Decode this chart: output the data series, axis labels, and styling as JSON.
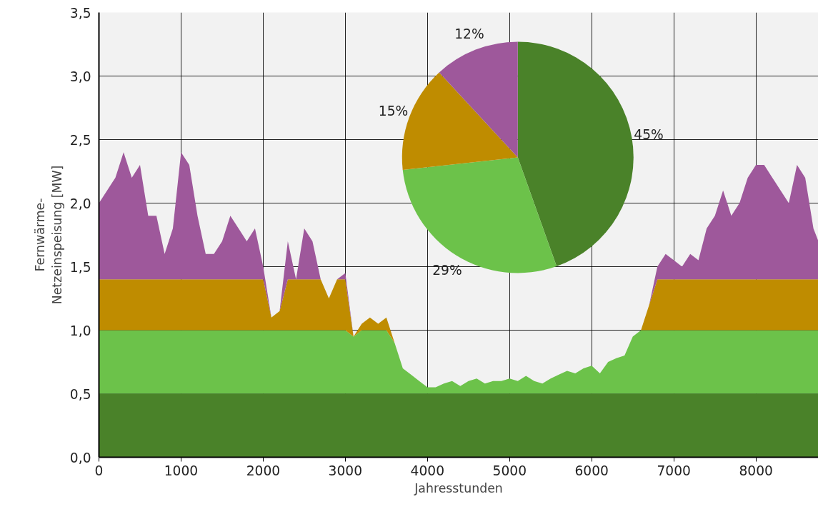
{
  "chart_data": [
    {
      "type": "area",
      "stacked": true,
      "xlabel": "Jahresstunden",
      "ylabel": "Fernwärme-\nNetzeinspeisung [MW]",
      "x": [
        0,
        100,
        200,
        300,
        400,
        500,
        600,
        700,
        800,
        900,
        1000,
        1100,
        1200,
        1300,
        1400,
        1500,
        1600,
        1700,
        1800,
        1900,
        2000,
        2100,
        2200,
        2300,
        2400,
        2500,
        2600,
        2700,
        2800,
        2900,
        3000,
        3100,
        3200,
        3300,
        3400,
        3500,
        3600,
        3700,
        3800,
        3900,
        4000,
        4100,
        4200,
        4300,
        4400,
        4500,
        4600,
        4700,
        4800,
        4900,
        5000,
        5100,
        5200,
        5300,
        5400,
        5500,
        5600,
        5700,
        5800,
        5900,
        6000,
        6100,
        6200,
        6300,
        6400,
        6500,
        6600,
        6700,
        6800,
        6900,
        7000,
        7100,
        7200,
        7300,
        7400,
        7500,
        7600,
        7700,
        7800,
        7900,
        8000,
        8100,
        8200,
        8300,
        8400,
        8500,
        8600,
        8700,
        8760
      ],
      "series": [
        {
          "color": "#4a8229",
          "values": [
            0.5,
            0.5,
            0.5,
            0.5,
            0.5,
            0.5,
            0.5,
            0.5,
            0.5,
            0.5,
            0.5,
            0.5,
            0.5,
            0.5,
            0.5,
            0.5,
            0.5,
            0.5,
            0.5,
            0.5,
            0.5,
            0.5,
            0.5,
            0.5,
            0.5,
            0.5,
            0.5,
            0.5,
            0.5,
            0.5,
            0.5,
            0.5,
            0.5,
            0.5,
            0.5,
            0.5,
            0.5,
            0.5,
            0.5,
            0.5,
            0.5,
            0.5,
            0.5,
            0.5,
            0.5,
            0.5,
            0.5,
            0.5,
            0.5,
            0.5,
            0.5,
            0.5,
            0.5,
            0.5,
            0.5,
            0.5,
            0.5,
            0.5,
            0.5,
            0.5,
            0.5,
            0.5,
            0.5,
            0.5,
            0.5,
            0.5,
            0.5,
            0.5,
            0.5,
            0.5,
            0.5,
            0.5,
            0.5,
            0.5,
            0.5,
            0.5,
            0.5,
            0.5,
            0.5,
            0.5,
            0.5,
            0.5,
            0.5,
            0.5,
            0.5,
            0.5,
            0.5,
            0.5,
            0.5
          ]
        },
        {
          "color": "#6cc24a",
          "values": [
            0.5,
            0.5,
            0.5,
            0.5,
            0.5,
            0.5,
            0.5,
            0.5,
            0.5,
            0.5,
            0.5,
            0.5,
            0.5,
            0.5,
            0.5,
            0.5,
            0.5,
            0.5,
            0.5,
            0.5,
            0.5,
            0.5,
            0.5,
            0.5,
            0.5,
            0.5,
            0.5,
            0.5,
            0.5,
            0.5,
            0.5,
            0.45,
            0.5,
            0.5,
            0.5,
            0.5,
            0.4,
            0.2,
            0.15,
            0.1,
            0.05,
            0.05,
            0.08,
            0.1,
            0.06,
            0.1,
            0.12,
            0.08,
            0.1,
            0.1,
            0.12,
            0.1,
            0.14,
            0.1,
            0.08,
            0.12,
            0.15,
            0.18,
            0.16,
            0.2,
            0.22,
            0.16,
            0.25,
            0.28,
            0.3,
            0.45,
            0.5,
            0.5,
            0.5,
            0.5,
            0.5,
            0.5,
            0.5,
            0.5,
            0.5,
            0.5,
            0.5,
            0.5,
            0.5,
            0.5,
            0.5,
            0.5,
            0.5,
            0.5,
            0.5,
            0.5,
            0.5,
            0.5,
            0.5
          ]
        },
        {
          "color": "#bf8c00",
          "values": [
            0.4,
            0.4,
            0.4,
            0.4,
            0.4,
            0.4,
            0.4,
            0.4,
            0.4,
            0.4,
            0.4,
            0.4,
            0.4,
            0.4,
            0.4,
            0.4,
            0.4,
            0.4,
            0.4,
            0.4,
            0.4,
            0.1,
            0.15,
            0.4,
            0.4,
            0.4,
            0.4,
            0.4,
            0.25,
            0.4,
            0.4,
            0,
            0.05,
            0.1,
            0.05,
            0.1,
            0,
            0,
            0,
            0,
            0,
            0,
            0,
            0,
            0,
            0,
            0,
            0,
            0,
            0,
            0,
            0,
            0,
            0,
            0,
            0,
            0,
            0,
            0,
            0,
            0,
            0,
            0,
            0,
            0,
            0,
            0,
            0.2,
            0.4,
            0.4,
            0.4,
            0.4,
            0.4,
            0.4,
            0.4,
            0.4,
            0.4,
            0.4,
            0.4,
            0.4,
            0.4,
            0.4,
            0.4,
            0.4,
            0.4,
            0.4,
            0.4,
            0.4,
            0.4
          ]
        },
        {
          "color": "#9e589b",
          "values": [
            0.6,
            0.7,
            0.8,
            1.0,
            0.8,
            0.9,
            0.5,
            0.5,
            0.2,
            0.4,
            1.0,
            0.9,
            0.5,
            0.2,
            0.2,
            0.3,
            0.5,
            0.4,
            0.3,
            0.4,
            0.1,
            0,
            0,
            0.3,
            0,
            0.4,
            0.3,
            0,
            0,
            0,
            0.05,
            0,
            0,
            0,
            0,
            0,
            0,
            0,
            0,
            0,
            0,
            0,
            0,
            0,
            0,
            0,
            0,
            0,
            0,
            0,
            0,
            0,
            0,
            0,
            0,
            0,
            0,
            0,
            0,
            0,
            0,
            0,
            0,
            0,
            0,
            0,
            0,
            0,
            0.1,
            0.2,
            0.15,
            0.1,
            0.2,
            0.15,
            0.4,
            0.5,
            0.7,
            0.5,
            0.6,
            0.8,
            0.9,
            0.9,
            0.8,
            0.7,
            0.6,
            0.9,
            0.8,
            0.4,
            0.3
          ]
        }
      ],
      "xlim": [
        0,
        8760
      ],
      "xticks": [
        0,
        1000,
        2000,
        3000,
        4000,
        5000,
        6000,
        7000,
        8000
      ],
      "ylim": [
        0,
        3.5
      ],
      "yticks": [
        {
          "value": 0,
          "label": "0,0"
        },
        {
          "value": 0.5,
          "label": "0,5"
        },
        {
          "value": 1,
          "label": "1,0"
        },
        {
          "value": 1.5,
          "label": "1,5"
        },
        {
          "value": 2,
          "label": "2,0"
        },
        {
          "value": 2.5,
          "label": "2,5"
        },
        {
          "value": 3,
          "label": "3,0"
        },
        {
          "value": 3.5,
          "label": "3,5"
        }
      ],
      "grid": true
    },
    {
      "type": "pie",
      "categories": [
        null,
        null,
        null,
        null
      ],
      "values": [
        45,
        29,
        15,
        12
      ],
      "colors": [
        "#4a8229",
        "#6cc24a",
        "#bf8c00",
        "#9e589b"
      ],
      "value_labels": [
        "45%",
        "29%",
        "15%",
        "12%"
      ]
    }
  ]
}
